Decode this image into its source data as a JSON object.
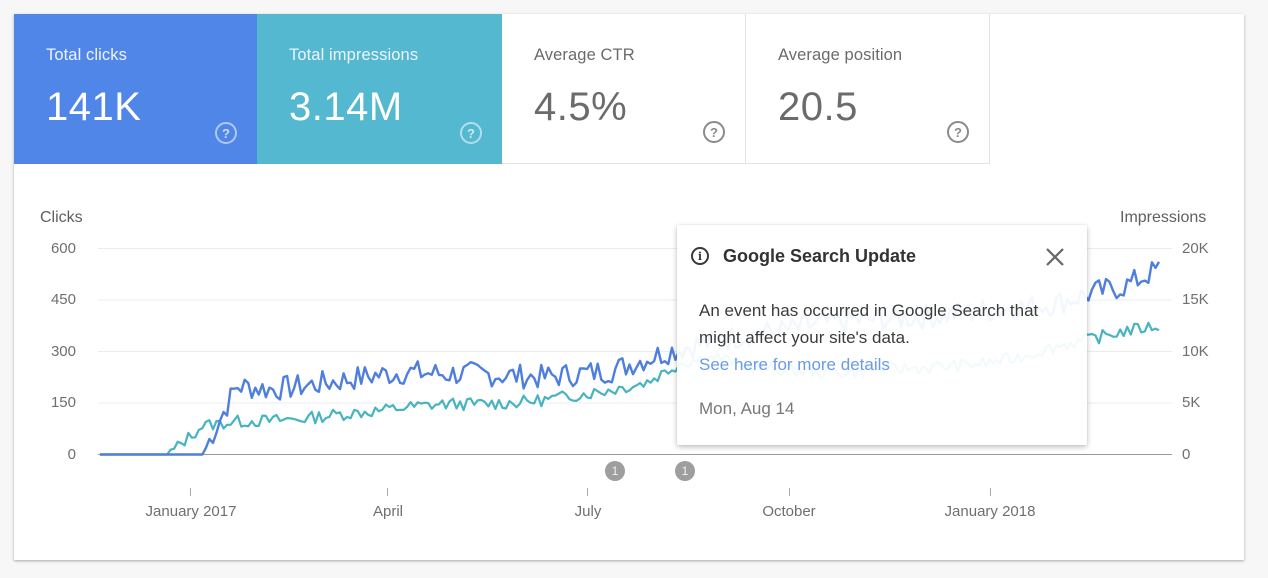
{
  "metrics": [
    {
      "label": "Total clicks",
      "value": "141K",
      "color": "#4f86e8",
      "selected": true
    },
    {
      "label": "Total impressions",
      "value": "3.14M",
      "color": "#54b8d0",
      "selected": true
    },
    {
      "label": "Average CTR",
      "value": "4.5%",
      "selected": false
    },
    {
      "label": "Average position",
      "value": "20.5",
      "selected": false
    }
  ],
  "help_icon": "?",
  "chart": {
    "left_axis_title": "Clicks",
    "right_axis_title": "Impressions",
    "left_ticks": [
      "600",
      "450",
      "300",
      "150",
      "0"
    ],
    "right_ticks": [
      "20K",
      "15K",
      "10K",
      "5K",
      "0"
    ],
    "x_ticks": [
      "January 2017",
      "April",
      "July",
      "October",
      "January 2018"
    ],
    "annotations": [
      {
        "label": "1",
        "date": "Mon, Aug 14"
      },
      {
        "label": "1"
      }
    ]
  },
  "popup": {
    "icon": "i",
    "title": "Google Search Update",
    "body": "An event has occurred in Google Search that might affect your site's data.",
    "link": "See here for more details",
    "date": "Mon, Aug 14"
  },
  "chart_data": {
    "type": "line",
    "title": "",
    "xlabel": "",
    "ylabel": "Clicks",
    "ylabel_right": "Impressions",
    "ylim": [
      0,
      600
    ],
    "ylim_right": [
      0,
      20000
    ],
    "x_range": [
      "Nov 2016",
      "Feb 2018"
    ],
    "x_tick_labels": [
      "January 2017",
      "April",
      "July",
      "October",
      "January 2018"
    ],
    "grid": true,
    "legend": "metric cards at top (Total clicks, Total impressions)",
    "x": [
      "2016-11-01",
      "2016-11-15",
      "2016-12-01",
      "2016-12-15",
      "2017-01-01",
      "2017-01-15",
      "2017-02-01",
      "2017-02-15",
      "2017-03-01",
      "2017-03-15",
      "2017-04-01",
      "2017-04-15",
      "2017-05-01",
      "2017-05-15",
      "2017-06-01",
      "2017-06-15",
      "2017-07-01",
      "2017-07-15",
      "2017-08-01",
      "2017-08-15",
      "2017-09-01",
      "2017-09-15",
      "2017-10-01",
      "2017-10-15",
      "2017-11-01",
      "2017-11-15",
      "2017-12-01",
      "2017-12-15",
      "2018-01-01",
      "2018-01-15",
      "2018-02-01",
      "2018-02-15"
    ],
    "series": [
      {
        "name": "Clicks",
        "axis": "left",
        "color": "#4f7fdc",
        "values": [
          0,
          0,
          0,
          0,
          200,
          190,
          200,
          215,
          230,
          240,
          235,
          235,
          230,
          225,
          235,
          245,
          280,
          310,
          330,
          350,
          360,
          380,
          390,
          395,
          400,
          410,
          420,
          430,
          440,
          470,
          490,
          540
        ]
      },
      {
        "name": "Impressions",
        "axis": "right",
        "color": "#47b4bf",
        "values": [
          0,
          0,
          0,
          2800,
          3200,
          3300,
          3500,
          3900,
          4200,
          4600,
          4900,
          4900,
          5000,
          5300,
          5800,
          6300,
          7000,
          8900,
          9500,
          8500,
          8200,
          8000,
          8000,
          8300,
          8400,
          8600,
          8900,
          9500,
          10500,
          11200,
          12000,
          12500
        ]
      }
    ]
  }
}
